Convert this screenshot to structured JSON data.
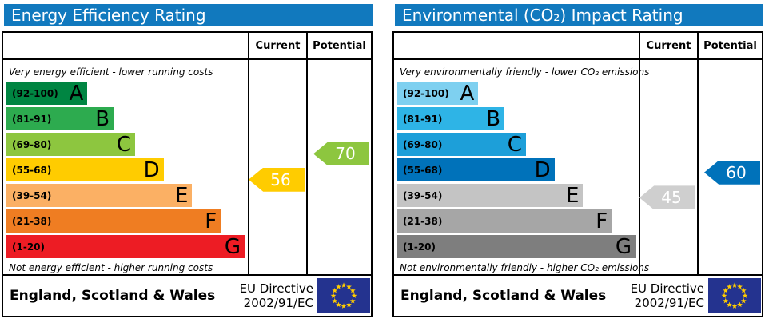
{
  "page": {
    "background": "#ffffff"
  },
  "panels": [
    {
      "title": "Energy Efficiency Rating",
      "header_color": "#1179be",
      "columns": {
        "current": "Current",
        "potential": "Potential"
      },
      "top_note": "Very energy efficient - lower running costs",
      "bottom_note": "Not energy efficient - higher running costs",
      "bands": [
        {
          "letter": "A",
          "range_text": "(92-100)",
          "lo": 92,
          "hi": 100,
          "color": "#008542",
          "width_pct": 34
        },
        {
          "letter": "B",
          "range_text": "(81-91)",
          "lo": 81,
          "hi": 91,
          "color": "#2dab4f",
          "width_pct": 45
        },
        {
          "letter": "C",
          "range_text": "(69-80)",
          "lo": 69,
          "hi": 80,
          "color": "#8dc63f",
          "width_pct": 54
        },
        {
          "letter": "D",
          "range_text": "(55-68)",
          "lo": 55,
          "hi": 68,
          "color": "#ffcc00",
          "width_pct": 66
        },
        {
          "letter": "E",
          "range_text": "(39-54)",
          "lo": 39,
          "hi": 54,
          "color": "#fbb064",
          "width_pct": 78
        },
        {
          "letter": "F",
          "range_text": "(21-38)",
          "lo": 21,
          "hi": 38,
          "color": "#ef7d22",
          "width_pct": 90
        },
        {
          "letter": "G",
          "range_text": "(1-20)",
          "lo": 1,
          "hi": 20,
          "color": "#ed1c24",
          "width_pct": 100
        }
      ],
      "current": {
        "value": 56,
        "color": "#ffcc00"
      },
      "potential": {
        "value": 70,
        "color": "#8dc63f"
      },
      "footer": {
        "region": "England, Scotland & Wales",
        "directive_line1": "EU Directive",
        "directive_line2": "2002/91/EC",
        "flag_blue": "#24338f",
        "star_color": "#ffcc00"
      }
    },
    {
      "title": "Environmental (CO₂) Impact Rating",
      "header_color": "#1179be",
      "columns": {
        "current": "Current",
        "potential": "Potential"
      },
      "top_note": "Very environmentally friendly - lower CO₂ emissions",
      "bottom_note": "Not environmentally friendly - higher CO₂ emissions",
      "bands": [
        {
          "letter": "A",
          "range_text": "(92-100)",
          "lo": 92,
          "hi": 100,
          "color": "#7ed0f0",
          "width_pct": 34
        },
        {
          "letter": "B",
          "range_text": "(81-91)",
          "lo": 81,
          "hi": 91,
          "color": "#2eb4e6",
          "width_pct": 45
        },
        {
          "letter": "C",
          "range_text": "(69-80)",
          "lo": 69,
          "hi": 80,
          "color": "#1d9fd9",
          "width_pct": 54
        },
        {
          "letter": "D",
          "range_text": "(55-68)",
          "lo": 55,
          "hi": 68,
          "color": "#0072ba",
          "width_pct": 66
        },
        {
          "letter": "E",
          "range_text": "(39-54)",
          "lo": 39,
          "hi": 54,
          "color": "#c4c4c4",
          "width_pct": 78
        },
        {
          "letter": "F",
          "range_text": "(21-38)",
          "lo": 21,
          "hi": 38,
          "color": "#a6a6a6",
          "width_pct": 90
        },
        {
          "letter": "G",
          "range_text": "(1-20)",
          "lo": 1,
          "hi": 20,
          "color": "#7e7e7e",
          "width_pct": 100
        }
      ],
      "current": {
        "value": 45,
        "color": "#cfcfcf"
      },
      "potential": {
        "value": 60,
        "color": "#0072ba"
      },
      "footer": {
        "region": "England, Scotland & Wales",
        "directive_line1": "EU Directive",
        "directive_line2": "2002/91/EC",
        "flag_blue": "#24338f",
        "star_color": "#ffcc00"
      }
    }
  ],
  "chart_data": [
    {
      "type": "bar",
      "title": "Energy Efficiency Rating",
      "categories": [
        "A (92-100)",
        "B (81-91)",
        "C (69-80)",
        "D (55-68)",
        "E (39-54)",
        "F (21-38)",
        "G (1-20)"
      ],
      "values": [
        34,
        45,
        54,
        66,
        78,
        90,
        100
      ],
      "values_meaning": "band bar length as % of scale area (decorative EPC band lengths)",
      "series": [
        {
          "name": "Current",
          "value": 56,
          "band": "D"
        },
        {
          "name": "Potential",
          "value": 70,
          "band": "C"
        }
      ],
      "xlabel": "",
      "ylabel": "",
      "xlim": [
        0,
        100
      ],
      "legend_position": "columns-right",
      "annotations": [
        "Very energy efficient - lower running costs",
        "Not energy efficient - higher running costs"
      ]
    },
    {
      "type": "bar",
      "title": "Environmental (CO₂) Impact Rating",
      "categories": [
        "A (92-100)",
        "B (81-91)",
        "C (69-80)",
        "D (55-68)",
        "E (39-54)",
        "F (21-38)",
        "G (1-20)"
      ],
      "values": [
        34,
        45,
        54,
        66,
        78,
        90,
        100
      ],
      "values_meaning": "band bar length as % of scale area (decorative EPC band lengths)",
      "series": [
        {
          "name": "Current",
          "value": 45,
          "band": "E"
        },
        {
          "name": "Potential",
          "value": 60,
          "band": "D"
        }
      ],
      "xlabel": "",
      "ylabel": "",
      "xlim": [
        0,
        100
      ],
      "legend_position": "columns-right",
      "annotations": [
        "Very environmentally friendly - lower CO₂ emissions",
        "Not environmentally friendly - higher CO₂ emissions"
      ]
    }
  ]
}
